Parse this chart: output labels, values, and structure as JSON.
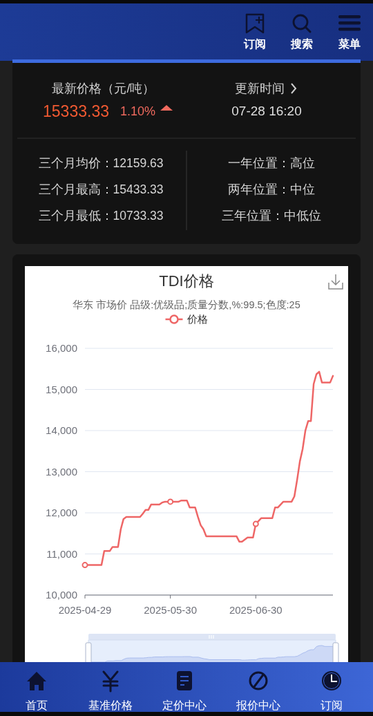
{
  "chart_data": [
    {
      "type": "other",
      "annotations": [
        "订阅",
        "搜索",
        "菜单"
      ]
    },
    {
      "type": "other",
      "annotations": [
        "最新价格（元/吨）",
        "15333.33",
        "1.10%",
        "更新时间",
        "07-28 16:20",
        "三个月均价：12159.63",
        "三个月最高：15433.33",
        "三个月最低：10733.33",
        "一年位置：高位",
        "两年位置：中位",
        "三年位置：中低位"
      ]
    },
    {
      "type": "line",
      "title": "TDI价格",
      "subtitle": "华东 市场价 品级:优级品;质量分数,%:99.5;色度:25",
      "x": [
        "2025-04-29",
        "2025-05-05",
        "2025-05-06",
        "2025-05-08",
        "2025-05-09",
        "2025-05-11",
        "2025-05-12",
        "2025-05-13",
        "2025-05-14",
        "2025-05-19",
        "2025-05-20",
        "2025-05-21",
        "2025-05-22",
        "2025-05-23",
        "2025-05-26",
        "2025-05-27",
        "2025-05-28",
        "2025-05-30",
        "2025-06-02",
        "2025-06-03",
        "2025-06-05",
        "2025-06-06",
        "2025-06-08",
        "2025-06-09",
        "2025-06-10",
        "2025-06-11",
        "2025-06-12",
        "2025-06-23",
        "2025-06-24",
        "2025-06-25",
        "2025-06-26",
        "2025-06-27",
        "2025-06-29",
        "2025-06-30",
        "2025-07-01",
        "2025-07-02",
        "2025-07-06",
        "2025-07-07",
        "2025-07-08",
        "2025-07-09",
        "2025-07-10",
        "2025-07-13",
        "2025-07-14",
        "2025-07-15",
        "2025-07-16",
        "2025-07-17",
        "2025-07-18",
        "2025-07-19",
        "2025-07-20",
        "2025-07-21",
        "2025-07-22",
        "2025-07-23",
        "2025-07-24",
        "2025-07-27",
        "2025-07-28"
      ],
      "series": [
        {
          "name": "价格",
          "color": "#ee6666",
          "values": [
            10730,
            10730,
            11070,
            11070,
            11170,
            11170,
            11600,
            11850,
            11900,
            11900,
            11980,
            12070,
            12070,
            12200,
            12200,
            12250,
            12270,
            12270,
            12270,
            12300,
            12300,
            12130,
            12130,
            11900,
            11700,
            11600,
            11430,
            11430,
            11300,
            11300,
            11350,
            11400,
            11400,
            11730,
            11800,
            11870,
            11870,
            12130,
            12130,
            12200,
            12270,
            12270,
            12400,
            12800,
            13250,
            13550,
            14000,
            14230,
            14230,
            15130,
            15370,
            15430,
            15170,
            15170,
            15330
          ]
        },
        {
          "type": "scatter",
          "color": "#ee6666",
          "x": [
            "2025-04-29",
            "2025-05-30",
            "2025-06-30"
          ],
          "values": [
            10730,
            12270,
            11730
          ],
          "marker": "circle"
        }
      ],
      "xlim": [
        "2025-04-29",
        "2025-07-28"
      ],
      "xticks": [
        "2025-04-29",
        "2025-05-30",
        "2025-06-30"
      ],
      "ylim": [
        10000,
        16000
      ],
      "yticks": [
        {
          "value": 10000,
          "label": "10,000"
        },
        {
          "value": 11000,
          "label": "11,000"
        },
        {
          "value": 12000,
          "label": "12,000"
        },
        {
          "value": 13000,
          "label": "13,000"
        },
        {
          "value": 14000,
          "label": "14,000"
        },
        {
          "value": 15000,
          "label": "15,000"
        },
        {
          "value": 16000,
          "label": "16,000"
        }
      ],
      "grid": "y",
      "legend": "top"
    },
    {
      "type": "other",
      "annotations": [
        "首页",
        "基准价格",
        "定价中心",
        "报价中心",
        "订阅"
      ]
    }
  ]
}
